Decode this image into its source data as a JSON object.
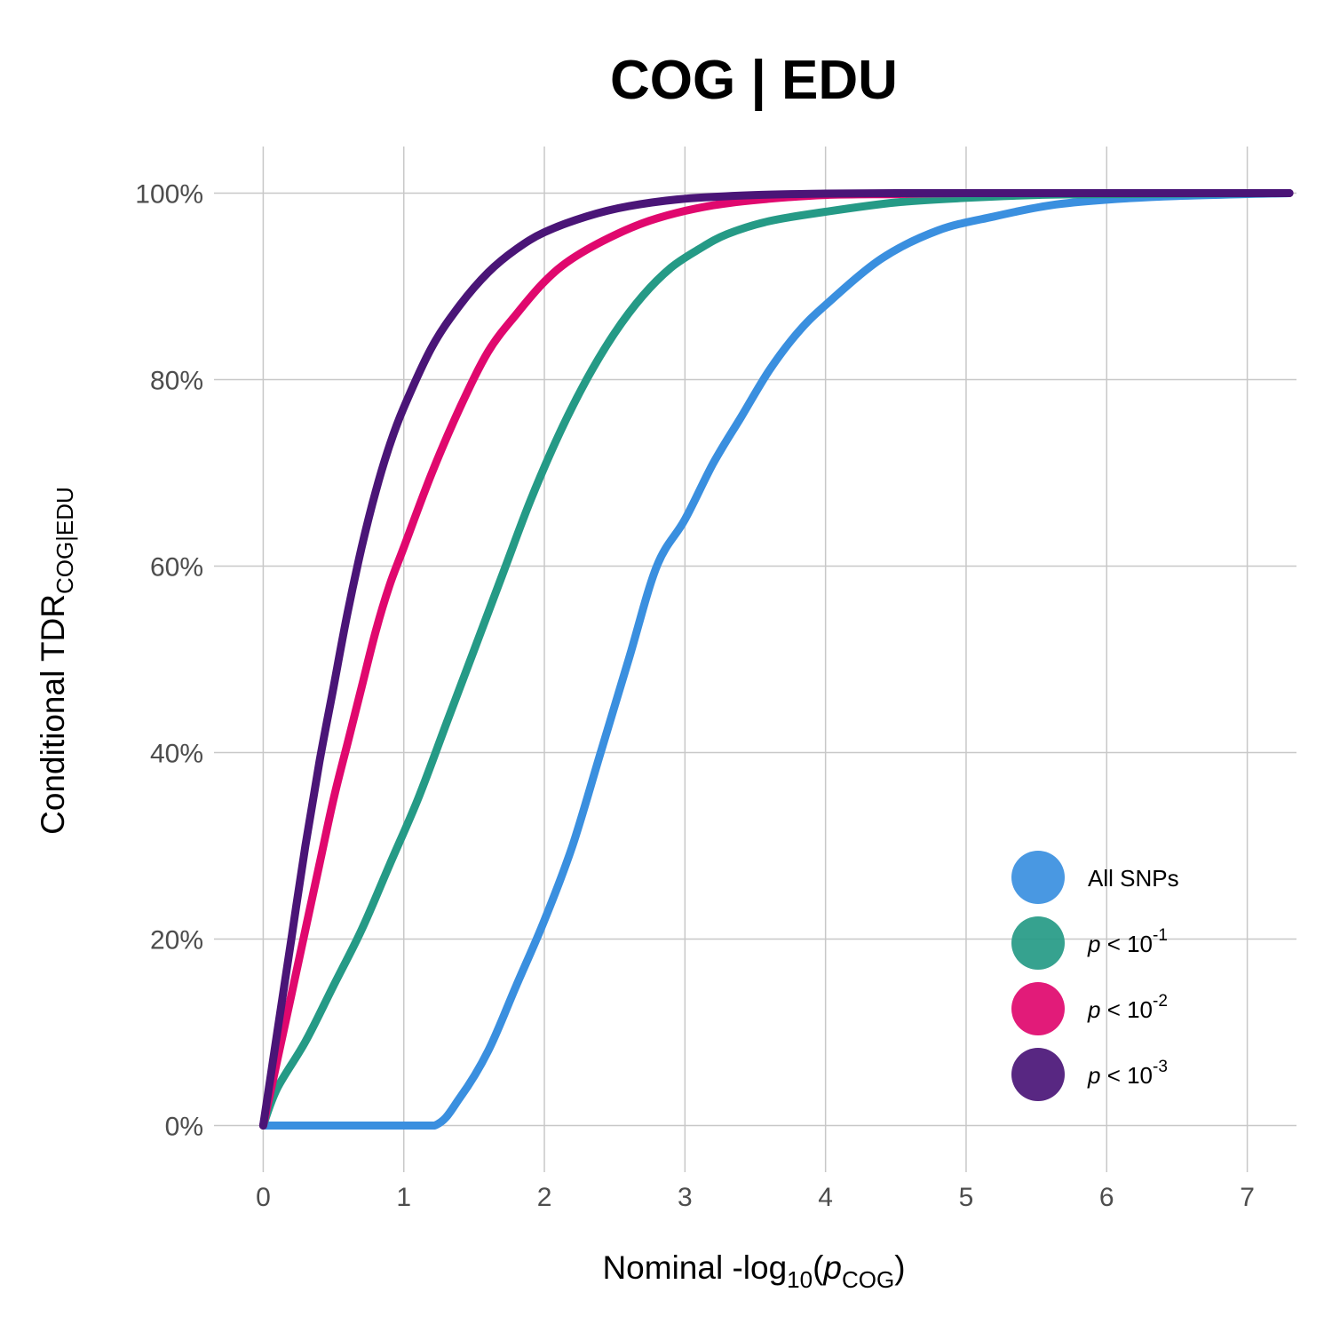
{
  "chart_data": {
    "type": "line",
    "title": "COG | EDU",
    "xlabel": {
      "main": "Nominal -log",
      "sub": "10",
      "open": "(",
      "italic": "p",
      "italic_sub": "COG",
      "close": ")"
    },
    "ylabel": {
      "main": "Conditional TDR",
      "sub": "COG|EDU"
    },
    "xlim": [
      -0.35,
      7.35
    ],
    "ylim": [
      -0.05,
      1.05
    ],
    "x_ticks": [
      0,
      1,
      2,
      3,
      4,
      5,
      6,
      7
    ],
    "x_tick_labels": [
      "0",
      "1",
      "2",
      "3",
      "4",
      "5",
      "6",
      "7"
    ],
    "y_ticks": [
      0,
      0.2,
      0.4,
      0.6,
      0.8,
      1.0
    ],
    "y_tick_labels": [
      "0%",
      "20%",
      "40%",
      "60%",
      "80%",
      "100%"
    ],
    "grid": true,
    "legend_position": "bottom-right",
    "series": [
      {
        "legend_label": "All SNPs",
        "legend_italic": "",
        "legend_sup": "",
        "color": "#3a8fdf",
        "x": [
          0,
          0.3,
          0.6,
          0.9,
          1.22,
          1.4,
          1.6,
          1.8,
          2.0,
          2.2,
          2.4,
          2.6,
          2.8,
          3.0,
          3.2,
          3.4,
          3.6,
          3.8,
          4.0,
          4.4,
          4.8,
          5.2,
          5.6,
          6.0,
          6.5,
          7.3
        ],
        "y": [
          0,
          0,
          0,
          0,
          0,
          0.03,
          0.08,
          0.15,
          0.22,
          0.3,
          0.4,
          0.5,
          0.6,
          0.65,
          0.71,
          0.76,
          0.81,
          0.85,
          0.88,
          0.93,
          0.96,
          0.975,
          0.987,
          0.993,
          0.997,
          1.0
        ]
      },
      {
        "legend_label": "< 10",
        "legend_italic": "p",
        "legend_sup": "-1",
        "color": "#259a86",
        "x": [
          0,
          0.1,
          0.3,
          0.5,
          0.7,
          0.9,
          1.1,
          1.3,
          1.5,
          1.7,
          1.9,
          2.1,
          2.3,
          2.5,
          2.7,
          2.9,
          3.1,
          3.3,
          3.6,
          4.0,
          4.5,
          5.0,
          5.5,
          6.0,
          7.3
        ],
        "y": [
          0,
          0.04,
          0.09,
          0.15,
          0.21,
          0.28,
          0.35,
          0.43,
          0.51,
          0.59,
          0.67,
          0.74,
          0.8,
          0.85,
          0.89,
          0.92,
          0.94,
          0.956,
          0.97,
          0.98,
          0.99,
          0.995,
          0.998,
          0.999,
          1.0
        ]
      },
      {
        "legend_label": "< 10",
        "legend_italic": "p",
        "legend_sup": "-2",
        "color": "#e0086e",
        "x": [
          0,
          0.1,
          0.2,
          0.3,
          0.4,
          0.5,
          0.6,
          0.7,
          0.8,
          0.9,
          1.0,
          1.2,
          1.4,
          1.6,
          1.8,
          2.0,
          2.2,
          2.5,
          2.8,
          3.2,
          3.6,
          4.0,
          4.5,
          5.0,
          7.3
        ],
        "y": [
          0,
          0.07,
          0.14,
          0.21,
          0.28,
          0.35,
          0.41,
          0.47,
          0.53,
          0.58,
          0.62,
          0.7,
          0.77,
          0.83,
          0.87,
          0.905,
          0.93,
          0.955,
          0.973,
          0.987,
          0.994,
          0.998,
          0.999,
          1.0,
          1.0
        ]
      },
      {
        "legend_label": "< 10",
        "legend_italic": "p",
        "legend_sup": "-3",
        "color": "#4a1577",
        "x": [
          0,
          0.1,
          0.2,
          0.3,
          0.4,
          0.5,
          0.6,
          0.7,
          0.8,
          0.9,
          1.0,
          1.2,
          1.4,
          1.6,
          1.8,
          2.0,
          2.3,
          2.6,
          3.0,
          3.5,
          4.0,
          4.5,
          5.0,
          7.3
        ],
        "y": [
          0,
          0.1,
          0.2,
          0.3,
          0.39,
          0.47,
          0.55,
          0.62,
          0.68,
          0.73,
          0.77,
          0.835,
          0.88,
          0.915,
          0.94,
          0.958,
          0.975,
          0.986,
          0.994,
          0.998,
          0.9995,
          1.0,
          1.0,
          1.0
        ]
      }
    ]
  }
}
